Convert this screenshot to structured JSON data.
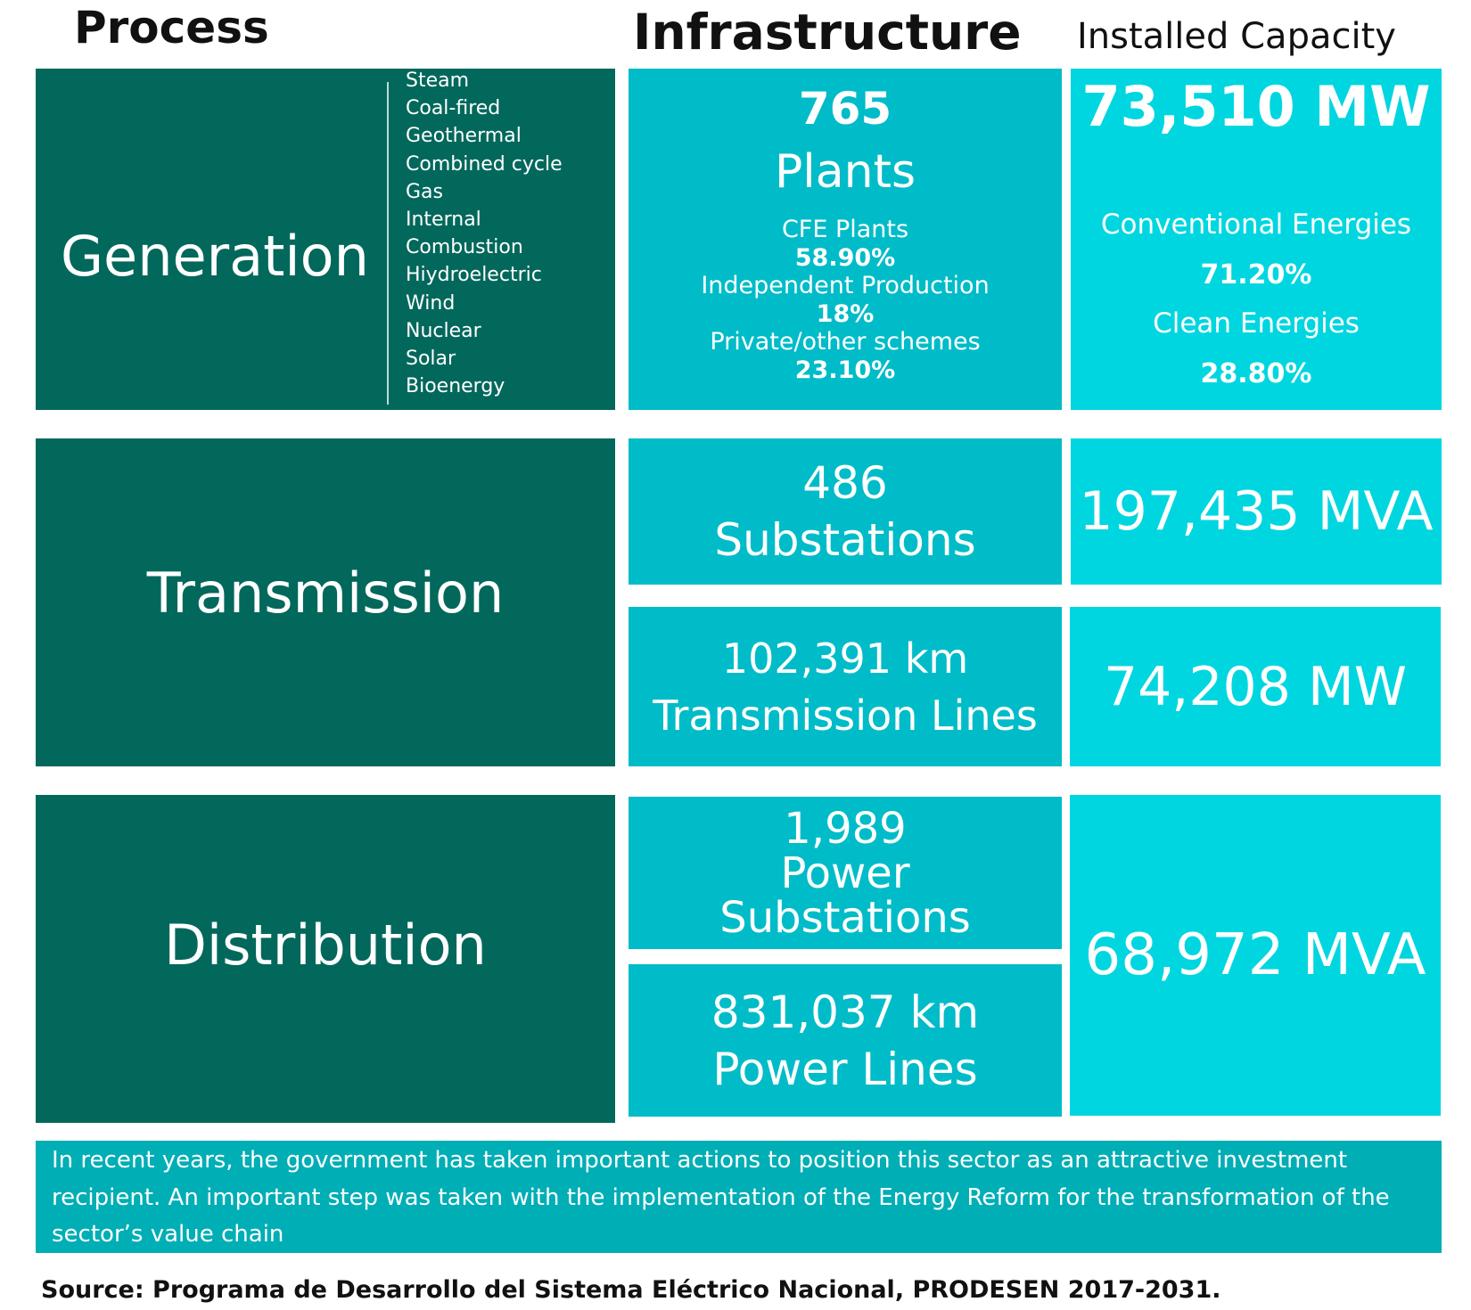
{
  "headers": {
    "process": "Process",
    "infrastructure": "Infrastructure",
    "installed_capacity": "Installed Capacity"
  },
  "generation": {
    "label": "Generation",
    "types": [
      "Steam",
      "Coal-fired",
      "Geothermal",
      "Combined cycle",
      "Gas",
      "Internal",
      "Combustion",
      "Hiydroelectric",
      "Wind",
      "Nuclear",
      "Solar",
      "Bioenergy"
    ],
    "infrastructure": {
      "count": "765",
      "unit": "Plants",
      "breakdown": [
        {
          "label": "CFE Plants",
          "value": "58.90%"
        },
        {
          "label": "Independent Production",
          "value": "18%"
        },
        {
          "label": "Private/other schemes",
          "value": "23.10%"
        }
      ]
    },
    "capacity": {
      "total": "73,510 MW",
      "breakdown": [
        {
          "label": "Conventional Energies",
          "value": "71.20%"
        },
        {
          "label": "Clean Energies",
          "value": "28.80%"
        }
      ]
    }
  },
  "transmission": {
    "label": "Transmission",
    "substations": {
      "count": "486",
      "unit": "Substations",
      "capacity": "197,435 MVA"
    },
    "lines": {
      "count": "102,391 km",
      "unit": "Transmission Lines",
      "capacity": "74,208 MW"
    }
  },
  "distribution": {
    "label": "Distribution",
    "substations": {
      "count": "1,989",
      "unit_line1": "Power",
      "unit_line2": "Substations"
    },
    "lines": {
      "count": "831,037 km",
      "unit": "Power Lines"
    },
    "capacity": "68,972 MVA"
  },
  "note": "In recent years, the government has taken important actions to position this sector as an attractive investment recipient. An important step was taken with the implementation of the Energy Reform for the transformation of the sector’s value chain",
  "source": "Source: Programa de Desarrollo del Sistema Eléctrico Nacional, PRODESEN 2017-2031."
}
